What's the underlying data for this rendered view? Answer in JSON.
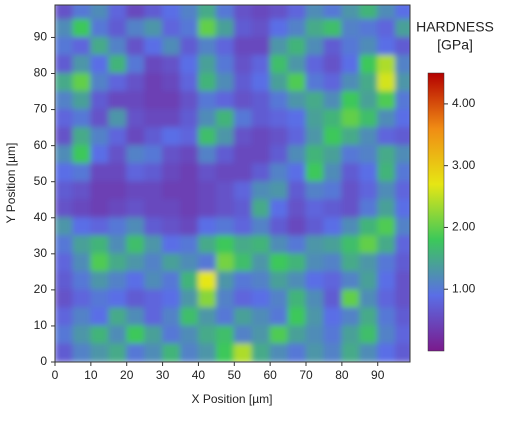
{
  "chart_data": {
    "type": "heatmap",
    "xlabel": "X Position [µm]",
    "ylabel": "Y Position [µm]",
    "xlim": [
      0,
      99
    ],
    "ylim": [
      0,
      99
    ],
    "xticks": [
      0,
      10,
      20,
      30,
      40,
      50,
      60,
      70,
      80,
      90
    ],
    "yticks": [
      0,
      10,
      20,
      30,
      40,
      50,
      60,
      70,
      80,
      90
    ],
    "cell": 5,
    "x": [
      2.5,
      7.5,
      12.5,
      17.5,
      22.5,
      27.5,
      32.5,
      37.5,
      42.5,
      47.5,
      52.5,
      57.5,
      62.5,
      67.5,
      72.5,
      77.5,
      82.5,
      87.5,
      92.5,
      97.5
    ],
    "y": [
      97.5,
      92.5,
      87.5,
      82.5,
      77.5,
      72.5,
      67.5,
      62.5,
      57.5,
      52.5,
      47.5,
      42.5,
      37.5,
      32.5,
      27.5,
      22.5,
      17.5,
      12.5,
      7.5,
      2.5
    ],
    "z": [
      [
        0.6,
        1.0,
        1.2,
        0.8,
        0.5,
        0.7,
        0.9,
        1.1,
        1.5,
        1.0,
        0.6,
        0.5,
        0.6,
        0.8,
        1.2,
        1.0,
        1.3,
        1.6,
        1.2,
        0.9
      ],
      [
        1.2,
        1.8,
        1.0,
        0.7,
        1.1,
        1.3,
        0.8,
        1.0,
        2.0,
        1.4,
        0.7,
        0.6,
        0.9,
        1.1,
        1.5,
        1.7,
        1.1,
        1.0,
        0.8,
        1.4
      ],
      [
        1.0,
        0.8,
        1.5,
        1.1,
        0.6,
        0.9,
        1.2,
        0.7,
        1.1,
        0.8,
        0.5,
        0.5,
        1.3,
        1.6,
        1.2,
        0.7,
        1.0,
        1.2,
        0.9,
        0.7
      ],
      [
        0.7,
        1.3,
        0.9,
        1.6,
        1.0,
        0.5,
        0.6,
        0.9,
        1.4,
        1.0,
        0.6,
        0.8,
        1.7,
        1.3,
        0.8,
        0.6,
        0.9,
        1.8,
        2.4,
        1.1
      ],
      [
        1.5,
        2.0,
        1.1,
        0.8,
        0.6,
        0.4,
        0.5,
        0.8,
        1.6,
        1.2,
        0.7,
        0.9,
        1.4,
        1.9,
        1.0,
        0.8,
        1.2,
        1.5,
        2.6,
        1.3
      ],
      [
        1.1,
        1.4,
        0.7,
        0.5,
        0.5,
        0.4,
        0.4,
        0.6,
        1.0,
        0.8,
        0.6,
        0.7,
        1.0,
        1.3,
        1.5,
        1.2,
        1.8,
        1.4,
        1.9,
        1.0
      ],
      [
        0.8,
        1.0,
        0.6,
        1.3,
        0.6,
        0.5,
        0.5,
        0.7,
        1.2,
        1.6,
        1.0,
        0.7,
        0.8,
        0.9,
        1.4,
        1.6,
        2.0,
        1.7,
        1.2,
        0.9
      ],
      [
        0.6,
        1.5,
        1.1,
        0.8,
        0.5,
        0.7,
        0.9,
        0.8,
        1.7,
        1.3,
        0.6,
        0.5,
        0.6,
        0.8,
        1.3,
        1.8,
        1.5,
        1.2,
        0.8,
        0.7
      ],
      [
        1.2,
        1.8,
        0.9,
        0.6,
        1.1,
        1.0,
        0.6,
        0.5,
        1.1,
        0.7,
        0.5,
        0.5,
        0.7,
        1.2,
        1.6,
        1.4,
        1.0,
        1.1,
        1.5,
        1.2
      ],
      [
        0.9,
        1.0,
        0.5,
        0.5,
        0.8,
        0.7,
        0.5,
        0.4,
        0.6,
        0.5,
        0.5,
        0.7,
        1.1,
        0.9,
        1.8,
        1.2,
        0.7,
        0.9,
        1.6,
        1.0
      ],
      [
        0.7,
        0.6,
        0.4,
        0.4,
        0.5,
        0.5,
        0.4,
        0.4,
        0.5,
        0.6,
        0.8,
        1.2,
        1.3,
        0.7,
        1.1,
        1.0,
        0.6,
        0.8,
        1.2,
        0.8
      ],
      [
        0.6,
        0.5,
        0.4,
        0.5,
        0.6,
        0.5,
        0.5,
        0.4,
        0.5,
        0.6,
        0.7,
        1.5,
        0.9,
        0.6,
        0.8,
        0.7,
        0.6,
        1.0,
        1.4,
        0.9
      ],
      [
        1.3,
        0.9,
        0.8,
        1.0,
        1.2,
        0.7,
        0.6,
        0.5,
        0.9,
        1.0,
        0.8,
        1.1,
        0.7,
        0.5,
        0.7,
        0.9,
        1.2,
        1.6,
        1.9,
        1.1
      ],
      [
        1.0,
        1.4,
        1.6,
        1.2,
        1.7,
        1.3,
        0.9,
        1.0,
        1.5,
        1.8,
        1.5,
        1.6,
        1.2,
        1.0,
        1.3,
        1.4,
        1.7,
        2.0,
        1.5,
        0.8
      ],
      [
        0.8,
        1.2,
        1.9,
        1.5,
        1.3,
        1.1,
        1.4,
        1.2,
        1.0,
        2.1,
        1.7,
        1.3,
        1.8,
        1.6,
        1.2,
        1.1,
        1.5,
        1.3,
        1.0,
        0.7
      ],
      [
        0.7,
        1.0,
        1.3,
        1.1,
        0.9,
        1.2,
        1.0,
        1.6,
        2.7,
        1.3,
        1.0,
        1.1,
        1.4,
        1.2,
        0.9,
        0.8,
        1.1,
        1.4,
        0.9,
        0.6
      ],
      [
        0.6,
        0.8,
        1.0,
        0.9,
        0.7,
        0.8,
        0.9,
        1.3,
        2.2,
        1.1,
        0.8,
        0.9,
        1.1,
        1.6,
        1.2,
        0.7,
        2.0,
        1.2,
        0.8,
        0.6
      ],
      [
        0.8,
        1.1,
        0.9,
        1.5,
        1.2,
        0.8,
        1.1,
        1.7,
        1.3,
        1.0,
        1.4,
        1.2,
        1.0,
        1.8,
        1.3,
        0.9,
        1.1,
        1.5,
        1.0,
        0.7
      ],
      [
        1.0,
        1.3,
        1.6,
        1.2,
        1.8,
        1.4,
        1.0,
        1.2,
        1.5,
        1.7,
        1.1,
        1.3,
        1.9,
        1.4,
        1.2,
        1.0,
        1.4,
        1.7,
        1.1,
        0.8
      ],
      [
        0.7,
        1.1,
        1.3,
        1.5,
        1.0,
        1.2,
        1.6,
        1.1,
        1.3,
        1.8,
        2.4,
        1.5,
        1.2,
        1.0,
        1.3,
        1.1,
        1.5,
        1.2,
        0.9,
        0.7
      ]
    ],
    "colorbar": {
      "title": [
        "HARDNESS",
        "[GPa]"
      ],
      "zlim": [
        0,
        4.5
      ],
      "ticks": [
        {
          "value": 1,
          "label": "1.00"
        },
        {
          "value": 2,
          "label": "2.00"
        },
        {
          "value": 3,
          "label": "3.00"
        },
        {
          "value": 4,
          "label": "4.00"
        }
      ],
      "colors": [
        "#7a1a8c",
        "#5a6ee6",
        "#3cc85a",
        "#e6e614",
        "#f08c14",
        "#b40000"
      ]
    }
  }
}
